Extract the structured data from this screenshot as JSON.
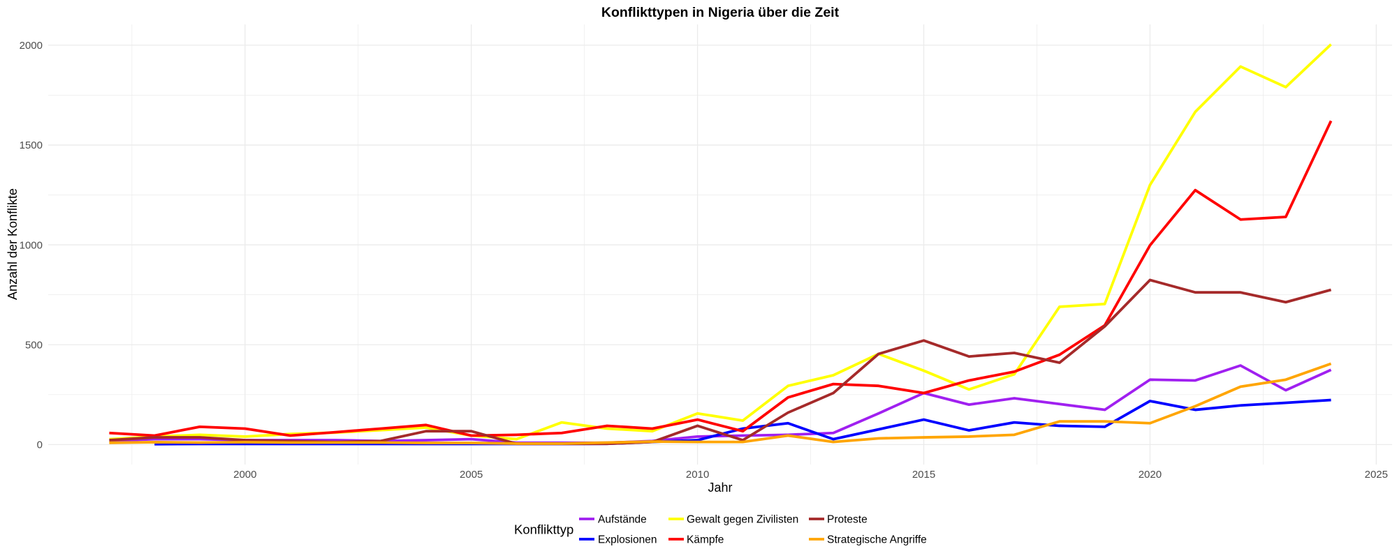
{
  "chart_data": {
    "type": "line",
    "title": "Konflikttypen in Nigeria über die Zeit",
    "xlabel": "Jahr",
    "ylabel": "Anzahl der Konflikte",
    "legend_title": "Konflikttyp",
    "legend_position": "bottom",
    "grid": true,
    "xlim": [
      1995.65,
      2025.35
    ],
    "ylim": [
      -100,
      2104
    ],
    "x_ticks": [
      2000,
      2005,
      2010,
      2015,
      2020,
      2025
    ],
    "y_ticks": [
      0,
      500,
      1000,
      1500,
      2000
    ],
    "x": [
      1997,
      1998,
      1999,
      2000,
      2001,
      2002,
      2003,
      2004,
      2005,
      2006,
      2007,
      2008,
      2009,
      2010,
      2011,
      2012,
      2013,
      2014,
      2015,
      2016,
      2017,
      2018,
      2019,
      2020,
      2021,
      2022,
      2023,
      2024
    ],
    "series": [
      {
        "name": "Aufstände",
        "color": "#A020F0",
        "values": [
          18,
          27,
          27,
          22,
          22,
          22,
          18,
          22,
          27,
          9,
          9,
          9,
          18,
          40,
          45,
          49,
          58,
          156,
          258,
          200,
          232,
          203,
          174,
          325,
          321,
          396,
          272,
          374
        ]
      },
      {
        "name": "Explosionen",
        "color": "#0000FF",
        "values": [
          null,
          2,
          3,
          3,
          3,
          3,
          3,
          3,
          3,
          3,
          3,
          4,
          13,
          22,
          80,
          107,
          27,
          76,
          125,
          71,
          111,
          94,
          89,
          218,
          174,
          196,
          209,
          223
        ]
      },
      {
        "name": "Gewalt gegen Zivilisten",
        "color": "#FFFF00",
        "values": [
          27,
          40,
          49,
          40,
          53,
          60,
          72,
          85,
          45,
          27,
          111,
          80,
          67,
          156,
          120,
          294,
          347,
          454,
          370,
          276,
          352,
          690,
          704,
          1300,
          1666,
          1893,
          1790,
          2004
        ]
      },
      {
        "name": "Kämpfe",
        "color": "#FF0000",
        "values": [
          58,
          45,
          89,
          80,
          45,
          62,
          80,
          98,
          45,
          49,
          58,
          94,
          80,
          125,
          67,
          236,
          303,
          294,
          258,
          321,
          365,
          450,
          597,
          998,
          1274,
          1127,
          1140,
          1621
        ]
      },
      {
        "name": "Proteste",
        "color": "#A52A2A",
        "values": [
          22,
          36,
          36,
          22,
          18,
          13,
          18,
          67,
          67,
          4,
          4,
          4,
          13,
          94,
          22,
          160,
          258,
          454,
          521,
          441,
          459,
          410,
          592,
          824,
          762,
          762,
          713,
          775
        ]
      },
      {
        "name": "Strategische Angriffe",
        "color": "#FFA500",
        "values": [
          9,
          12,
          10,
          12,
          10,
          10,
          10,
          8,
          8,
          5,
          5,
          10,
          15,
          13,
          13,
          45,
          13,
          31,
          36,
          40,
          49,
          116,
          116,
          107,
          192,
          290,
          325,
          405
        ]
      }
    ]
  }
}
